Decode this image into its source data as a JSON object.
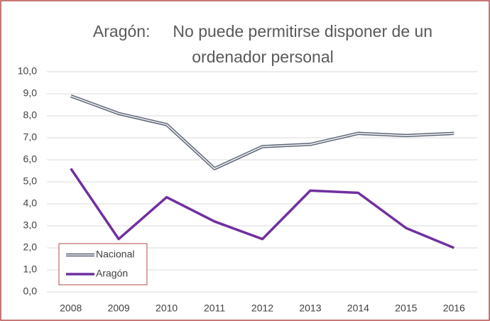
{
  "chart_data": {
    "type": "line",
    "title": "Aragón:     No puede permitirse disponer de un ordenador personal",
    "categories": [
      "2008",
      "2009",
      "2010",
      "2011",
      "2012",
      "2013",
      "2014",
      "2015",
      "2016"
    ],
    "series": [
      {
        "name": "Nacional",
        "color": "#5b6472",
        "values": [
          8.9,
          8.1,
          7.6,
          5.6,
          6.6,
          6.7,
          7.2,
          7.1,
          7.2
        ]
      },
      {
        "name": "Aragón",
        "color": "#7030a0",
        "values": [
          5.6,
          2.4,
          4.3,
          3.2,
          2.4,
          4.6,
          4.5,
          2.9,
          2.0
        ]
      }
    ],
    "ylim": [
      0,
      10
    ],
    "yticks": [
      {
        "value": 0,
        "label": "0,0"
      },
      {
        "value": 1,
        "label": "1,0"
      },
      {
        "value": 2,
        "label": "2,0"
      },
      {
        "value": 3,
        "label": "3,0"
      },
      {
        "value": 4,
        "label": "4,0"
      },
      {
        "value": 5,
        "label": "5,0"
      },
      {
        "value": 6,
        "label": "6,0"
      },
      {
        "value": 7,
        "label": "7,0"
      },
      {
        "value": 8,
        "label": "8,0"
      },
      {
        "value": 9,
        "label": "9,0"
      },
      {
        "value": 10,
        "label": "10,0"
      }
    ],
    "grid": true,
    "legend": "lower left"
  }
}
